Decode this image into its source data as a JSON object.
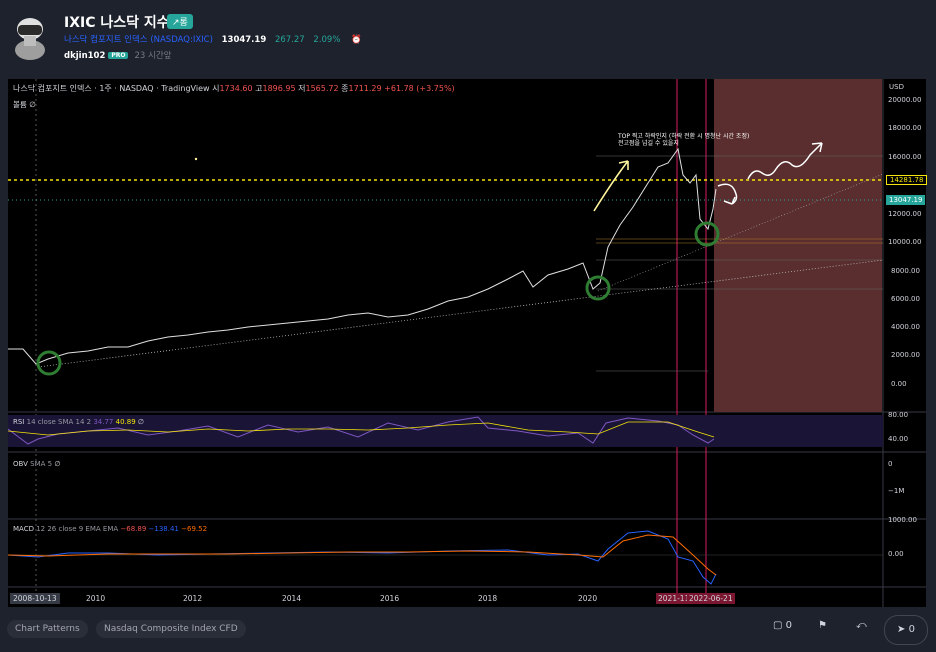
{
  "header": {
    "title": "IXIC 나스닥 지수",
    "trend_badge": "↗롱",
    "full_name": "나스닥 컴포지트 인덱스",
    "symbol": "(NASDAQ:IXIC)",
    "price": "13047.19",
    "change": "267.27",
    "change_pct": "2.09%",
    "author": "dkjin102",
    "author_badge": "PRO",
    "posted_ago": "23 시간앞"
  },
  "chart": {
    "title_line": "나스닥 컴포지트 인덱스 · 1주 · NASDAQ · TradingView",
    "ohlc_open_label": "시",
    "ohlc_open": "1734.60",
    "ohlc_high_label": "고",
    "ohlc_high": "1896.95",
    "ohlc_low_label": "저",
    "ohlc_low": "1565.72",
    "ohlc_close_label": "종",
    "ohlc_close": "1711.29",
    "ohlc_change": "+61.78 (+3.75%)",
    "volume_label": "볼륨",
    "volume_value": "∅",
    "currency": "USD",
    "price_axis": [
      "20000.00",
      "18000.00",
      "16000.00",
      "14000.00",
      "12000.00",
      "10000.00",
      "8000.00",
      "6000.00",
      "4000.00",
      "2000.00",
      "0.00"
    ],
    "level_label": "14281.78",
    "price_label": "13047.19",
    "annotation_line1": "TOP 찍고 하락인지 (하락 전환 시 명청난 시간 조정)",
    "annotation_line2": "전고점을 넘길 수 있을지",
    "rsi_label": "RSI",
    "rsi_params": "14 close SMA 14 2",
    "rsi_value1": "34.77",
    "rsi_value2": "40.89",
    "rsi_value3": "∅",
    "rsi_axis": [
      "80.00",
      "40.00"
    ],
    "obv_label": "OBV",
    "obv_params": "SMA 5",
    "obv_value": "∅",
    "obv_axis": [
      "0",
      "−1M"
    ],
    "macd_label": "MACD",
    "macd_params": "12 26 close 9 EMA EMA",
    "macd_v1": "−68.89",
    "macd_v2": "−138.41",
    "macd_v3": "−69.52",
    "macd_axis": [
      "1000.00",
      "0.00"
    ],
    "x_axis": [
      "2010",
      "2012",
      "2014",
      "2016",
      "2018",
      "2020"
    ],
    "x_start_label": "2008-10-13",
    "x_mark1": "2021-11-22",
    "x_mark2": "2022-06-21",
    "colors": {
      "up": "#26a69a",
      "down": "#ef5350",
      "level": "#f5e50a",
      "zone": "#5a2e2e"
    }
  },
  "footer": {
    "tags": [
      "Chart Patterns",
      "Nasdaq Composite Index CFD"
    ],
    "comments": "0",
    "boosts": "0",
    "icons": [
      "comment-icon",
      "flag-icon",
      "share-icon",
      "rocket-icon"
    ]
  }
}
